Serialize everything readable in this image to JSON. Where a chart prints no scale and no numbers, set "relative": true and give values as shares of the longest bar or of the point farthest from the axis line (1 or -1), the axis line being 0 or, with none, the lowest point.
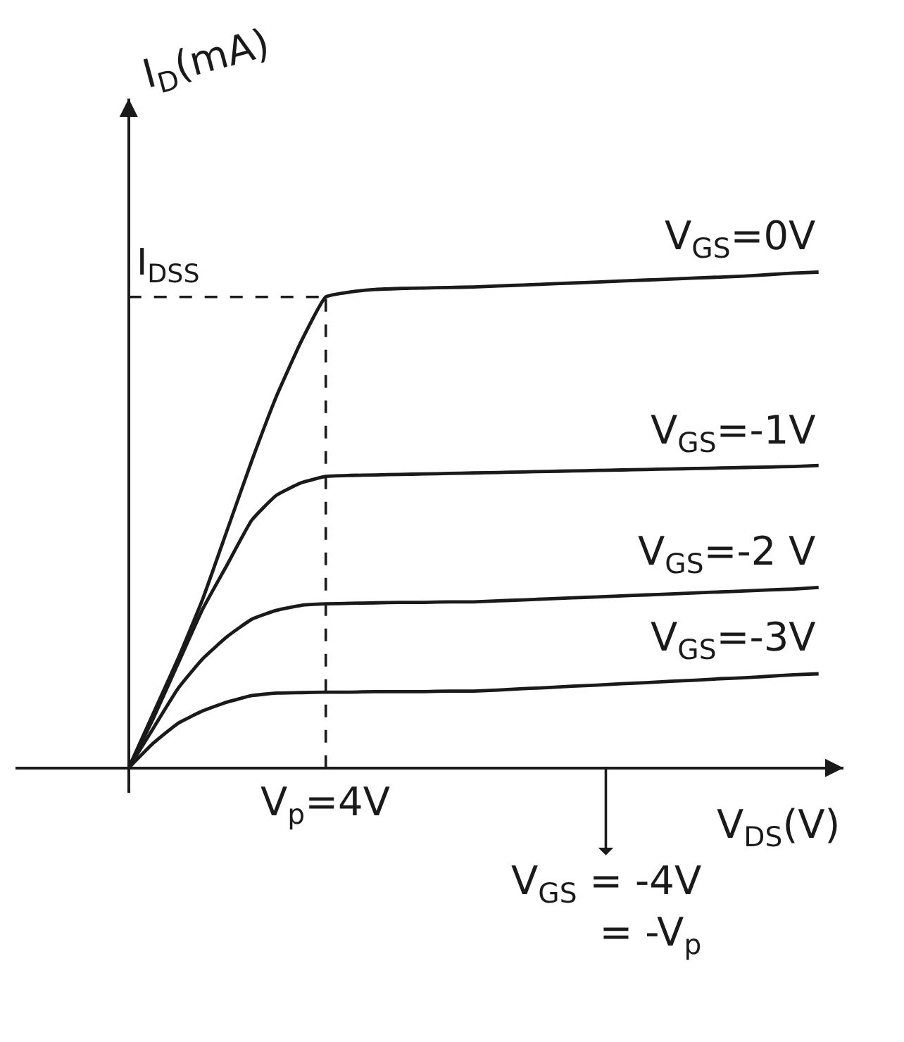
{
  "chart_data": {
    "type": "line",
    "relative": true,
    "xlabel": "V$_{DS}$(V)",
    "ylabel": "I$_{D}$(mA)",
    "categories": [
      null,
      null,
      null,
      null,
      null,
      null,
      null,
      null,
      null,
      null,
      null,
      null,
      null,
      null,
      null,
      null,
      null,
      null,
      null,
      null,
      null,
      null,
      null,
      null,
      null,
      null,
      null,
      null,
      null
    ],
    "series": [
      {
        "name": "V$_{GS}$=0V",
        "color": "#1a1a1a",
        "values": [
          0,
          0.11,
          0.22,
          0.34,
          0.48,
          0.62,
          0.75,
          0.86,
          0.95,
          0.96,
          0.965,
          0.967,
          0.968,
          0.969,
          0.97,
          0.972,
          0.974,
          0.976,
          0.978,
          0.98,
          0.982,
          0.984,
          0.986,
          0.988,
          0.99,
          0.992,
          0.995,
          0.998,
          1
        ]
      },
      {
        "name": "V$_{GS}$=-1V",
        "color": "#1a1a1a",
        "values": [
          0,
          0.1,
          0.21,
          0.32,
          0.41,
          0.5,
          0.55,
          0.575,
          0.588,
          0.59,
          0.591,
          0.592,
          0.593,
          0.594,
          0.595,
          0.596,
          0.597,
          0.598,
          0.599,
          0.6,
          0.601,
          0.602,
          0.603,
          0.604,
          0.605,
          0.606,
          0.607,
          0.608,
          0.61
        ]
      },
      {
        "name": "V$_{GS}$=-2 V",
        "color": "#1a1a1a",
        "values": [
          0,
          0.08,
          0.16,
          0.22,
          0.265,
          0.3,
          0.318,
          0.328,
          0.331,
          0.332,
          0.333,
          0.334,
          0.334,
          0.335,
          0.335,
          0.337,
          0.339,
          0.341,
          0.343,
          0.345,
          0.347,
          0.349,
          0.351,
          0.353,
          0.355,
          0.357,
          0.359,
          0.361,
          0.364
        ]
      },
      {
        "name": "V$_{GS}$=-3V",
        "color": "#1a1a1a",
        "values": [
          0,
          0.05,
          0.09,
          0.115,
          0.133,
          0.146,
          0.151,
          0.152,
          0.153,
          0.153,
          0.154,
          0.154,
          0.154,
          0.155,
          0.155,
          0.157,
          0.16,
          0.162,
          0.165,
          0.167,
          0.17,
          0.172,
          0.175,
          0.177,
          0.18,
          0.182,
          0.185,
          0.188,
          0.19
        ]
      }
    ],
    "ref_lines": [
      {
        "axis": "x",
        "label": "V$_{p}$=4V",
        "line_style": "dashed",
        "color": "#1a1a1a"
      },
      {
        "axis": "y",
        "value": 0.95,
        "label": "I$_{DSS}$",
        "line_style": "dashed",
        "color": "#1a1a1a"
      }
    ],
    "annotations": [
      "V$_{GS}$ = -4V\n= -V$_{p}$"
    ]
  }
}
